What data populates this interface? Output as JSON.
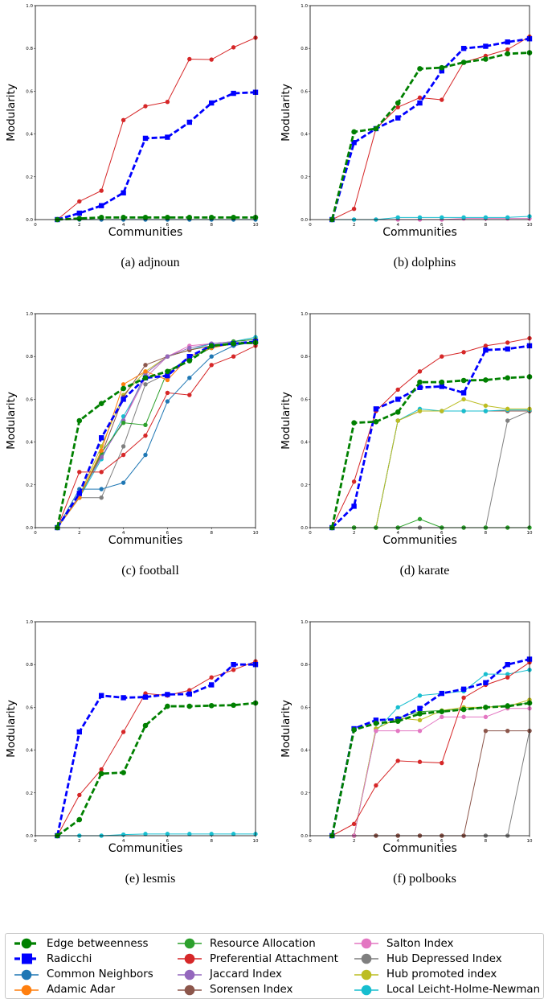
{
  "chart_data": [
    {
      "type": "line",
      "caption": "(a)  adjnoun",
      "xlabel": "Communities",
      "ylabel": "Modularity",
      "xlim": [
        0,
        10
      ],
      "ylim": [
        0,
        1.0
      ],
      "xticks": [
        "0",
        "2",
        "4",
        "6",
        "8",
        "10"
      ],
      "yticks": [
        "0.0",
        "0.2",
        "0.4",
        "0.6",
        "0.8",
        "1.0"
      ],
      "x": [
        1,
        2,
        3,
        4,
        5,
        6,
        7,
        8,
        9,
        10
      ],
      "series": [
        {
          "key": "edge",
          "values": [
            0,
            0.005,
            0.01,
            0.01,
            0.01,
            0.01,
            0.01,
            0.01,
            0.01,
            0.01
          ]
        },
        {
          "key": "radicchi",
          "values": [
            0,
            0.03,
            0.065,
            0.125,
            0.38,
            0.385,
            0.455,
            0.545,
            0.59,
            0.595
          ]
        },
        {
          "key": "pa",
          "values": [
            0,
            0.085,
            0.135,
            0.465,
            0.53,
            0.55,
            0.75,
            0.748,
            0.805,
            0.85
          ]
        },
        {
          "key": "cn",
          "values": [
            0,
            0,
            0,
            0,
            0,
            0,
            0,
            0,
            0,
            0
          ]
        }
      ]
    },
    {
      "type": "line",
      "caption": "(b)  dolphins",
      "xlabel": "Communities",
      "ylabel": "Modularity",
      "xlim": [
        0,
        10
      ],
      "ylim": [
        0,
        1.0
      ],
      "xticks": [
        "0",
        "2",
        "4",
        "6",
        "8",
        "10"
      ],
      "yticks": [
        "0.0",
        "0.2",
        "0.4",
        "0.6",
        "0.8",
        "1.0"
      ],
      "x": [
        1,
        2,
        3,
        4,
        5,
        6,
        7,
        8,
        9,
        10
      ],
      "series": [
        {
          "key": "edge",
          "values": [
            0,
            0.41,
            0.425,
            0.545,
            0.705,
            0.71,
            0.735,
            0.75,
            0.775,
            0.78
          ]
        },
        {
          "key": "radicchi",
          "values": [
            0,
            0.36,
            0.425,
            0.475,
            0.545,
            0.695,
            0.8,
            0.81,
            0.83,
            0.845
          ]
        },
        {
          "key": "pa",
          "values": [
            0,
            0.05,
            0.425,
            0.525,
            0.57,
            0.56,
            0.735,
            0.765,
            0.795,
            0.855
          ]
        },
        {
          "key": "lhn",
          "values": [
            0,
            0,
            0,
            0.01,
            0.01,
            0.01,
            0.01,
            0.01,
            0.01,
            0.015
          ]
        },
        {
          "key": "salton",
          "values": [
            0,
            0,
            0,
            0,
            0,
            0,
            0.005,
            0.005,
            0.005,
            0.005
          ]
        }
      ]
    },
    {
      "type": "line",
      "caption": "(c)  football",
      "xlabel": "Communities",
      "ylabel": "Modularity",
      "xlim": [
        0,
        10
      ],
      "ylim": [
        0,
        1.0
      ],
      "xticks": [
        "0",
        "2",
        "4",
        "6",
        "8",
        "10"
      ],
      "yticks": [
        "0.0",
        "0.2",
        "0.4",
        "0.6",
        "0.8",
        "1.0"
      ],
      "x": [
        1,
        2,
        3,
        4,
        5,
        6,
        7,
        8,
        9,
        10
      ],
      "series": [
        {
          "key": "edge",
          "values": [
            0,
            0.5,
            0.58,
            0.65,
            0.7,
            0.73,
            0.78,
            0.85,
            0.86,
            0.865
          ]
        },
        {
          "key": "radicchi",
          "values": [
            0,
            0.16,
            0.42,
            0.6,
            0.7,
            0.71,
            0.8,
            0.85,
            0.86,
            0.87
          ]
        },
        {
          "key": "cn",
          "values": [
            0,
            0.18,
            0.18,
            0.21,
            0.34,
            0.59,
            0.7,
            0.8,
            0.85,
            0.87
          ]
        },
        {
          "key": "aa",
          "values": [
            0,
            0.14,
            0.36,
            0.67,
            0.73,
            0.69,
            0.8,
            0.84,
            0.86,
            0.87
          ]
        },
        {
          "key": "ra",
          "values": [
            0,
            0.14,
            0.35,
            0.49,
            0.48,
            0.73,
            0.79,
            0.84,
            0.87,
            0.88
          ]
        },
        {
          "key": "pa",
          "values": [
            0,
            0.26,
            0.26,
            0.34,
            0.43,
            0.63,
            0.62,
            0.76,
            0.8,
            0.85
          ]
        },
        {
          "key": "jaccard",
          "values": [
            0,
            0.15,
            0.33,
            0.5,
            0.72,
            0.8,
            0.84,
            0.86,
            0.87,
            0.88
          ]
        },
        {
          "key": "sorensen",
          "values": [
            0,
            0.15,
            0.34,
            0.61,
            0.76,
            0.8,
            0.83,
            0.85,
            0.86,
            0.86
          ]
        },
        {
          "key": "salton",
          "values": [
            0,
            0.15,
            0.33,
            0.5,
            0.7,
            0.8,
            0.85,
            0.86,
            0.87,
            0.88
          ]
        },
        {
          "key": "hdi",
          "values": [
            0,
            0.14,
            0.14,
            0.38,
            0.67,
            0.72,
            0.8,
            0.84,
            0.86,
            0.86
          ]
        },
        {
          "key": "hpi",
          "values": [
            0,
            0.15,
            0.38,
            0.62,
            0.73,
            0.8,
            0.83,
            0.85,
            0.86,
            0.87
          ]
        },
        {
          "key": "lhn",
          "values": [
            0,
            0.14,
            0.32,
            0.52,
            0.7,
            0.8,
            0.83,
            0.86,
            0.87,
            0.89
          ]
        }
      ]
    },
    {
      "type": "line",
      "caption": "(d)  karate",
      "xlabel": "Communities",
      "ylabel": "Modularity",
      "xlim": [
        0,
        10
      ],
      "ylim": [
        0,
        1.0
      ],
      "xticks": [
        "0",
        "2",
        "4",
        "6",
        "8",
        "10"
      ],
      "yticks": [
        "0.0",
        "0.2",
        "0.4",
        "0.6",
        "0.8",
        "1.0"
      ],
      "x": [
        1,
        2,
        3,
        4,
        5,
        6,
        7,
        8,
        9,
        10
      ],
      "series": [
        {
          "key": "edge",
          "values": [
            0,
            0.49,
            0.495,
            0.54,
            0.68,
            0.68,
            0.688,
            0.69,
            0.7,
            0.705
          ]
        },
        {
          "key": "radicchi",
          "values": [
            0,
            0.1,
            0.555,
            0.6,
            0.655,
            0.66,
            0.63,
            0.83,
            0.835,
            0.85
          ]
        },
        {
          "key": "pa",
          "values": [
            0,
            0.215,
            0.545,
            0.645,
            0.73,
            0.8,
            0.82,
            0.85,
            0.865,
            0.885
          ]
        },
        {
          "key": "ra",
          "values": [
            0,
            0,
            0,
            0,
            0.04,
            0,
            0,
            0,
            0,
            0
          ]
        },
        {
          "key": "hpi",
          "values": [
            0,
            0,
            0,
            0.5,
            0.545,
            0.545,
            0.6,
            0.57,
            0.555,
            0.555
          ]
        },
        {
          "key": "lhn",
          "values": [
            0,
            0,
            0,
            0.5,
            0.555,
            0.545,
            0.545,
            0.545,
            0.55,
            0.55
          ]
        },
        {
          "key": "sorensen",
          "values": [
            0,
            0,
            0,
            0.5,
            0.545,
            0.545,
            0.545,
            0.545,
            0.545,
            0.545
          ]
        },
        {
          "key": "hdi",
          "values": [
            0,
            0,
            0,
            0,
            0,
            0,
            0,
            0,
            0.5,
            0.545
          ]
        }
      ]
    },
    {
      "type": "line",
      "caption": "(e)  lesmis",
      "xlabel": "Communities",
      "ylabel": "Modularity",
      "xlim": [
        0,
        10
      ],
      "ylim": [
        0,
        1.0
      ],
      "xticks": [
        "0",
        "2",
        "4",
        "6",
        "8",
        "10"
      ],
      "yticks": [
        "0.0",
        "0.2",
        "0.4",
        "0.6",
        "0.8",
        "1.0"
      ],
      "x": [
        1,
        2,
        3,
        4,
        5,
        6,
        7,
        8,
        9,
        10
      ],
      "series": [
        {
          "key": "edge",
          "values": [
            0,
            0.075,
            0.29,
            0.295,
            0.515,
            0.605,
            0.605,
            0.608,
            0.61,
            0.62
          ]
        },
        {
          "key": "radicchi",
          "values": [
            0,
            0.485,
            0.655,
            0.645,
            0.648,
            0.66,
            0.662,
            0.705,
            0.8,
            0.8
          ]
        },
        {
          "key": "pa",
          "values": [
            0,
            0.19,
            0.31,
            0.485,
            0.665,
            0.655,
            0.68,
            0.74,
            0.775,
            0.815
          ]
        },
        {
          "key": "lhn",
          "values": [
            0,
            0,
            0,
            0.005,
            0.008,
            0.008,
            0.008,
            0.008,
            0.008,
            0.008
          ]
        }
      ]
    },
    {
      "type": "line",
      "caption": "(f)  polbooks",
      "xlabel": "Communities",
      "ylabel": "Modularity",
      "xlim": [
        0,
        10
      ],
      "ylim": [
        0,
        1.0
      ],
      "xticks": [
        "0",
        "2",
        "4",
        "6",
        "8",
        "10"
      ],
      "yticks": [
        "0.0",
        "0.2",
        "0.4",
        "0.6",
        "0.8",
        "1.0"
      ],
      "x": [
        1,
        2,
        3,
        4,
        5,
        6,
        7,
        8,
        9,
        10
      ],
      "series": [
        {
          "key": "edge",
          "values": [
            0,
            0.495,
            0.525,
            0.535,
            0.57,
            0.58,
            0.59,
            0.6,
            0.605,
            0.62
          ]
        },
        {
          "key": "radicchi",
          "values": [
            0,
            0.5,
            0.54,
            0.545,
            0.595,
            0.665,
            0.685,
            0.715,
            0.8,
            0.825
          ]
        },
        {
          "key": "pa",
          "values": [
            0,
            0.055,
            0.235,
            0.35,
            0.345,
            0.34,
            0.645,
            0.705,
            0.74,
            0.81
          ]
        },
        {
          "key": "salton",
          "values": [
            0,
            0,
            0.49,
            0.49,
            0.49,
            0.555,
            0.555,
            0.555,
            0.595,
            0.595
          ]
        },
        {
          "key": "hpi",
          "values": [
            0,
            0,
            0.5,
            0.55,
            0.54,
            0.585,
            0.6,
            0.6,
            0.605,
            0.635
          ]
        },
        {
          "key": "ra",
          "values": [
            0,
            0,
            0.5,
            0.55,
            0.58,
            0.585,
            0.59,
            0.6,
            0.61,
            0.62
          ]
        },
        {
          "key": "lhn",
          "values": [
            0,
            0,
            0.49,
            0.6,
            0.655,
            0.665,
            0.675,
            0.755,
            0.755,
            0.775
          ]
        },
        {
          "key": "sorensen",
          "values": [
            0,
            0,
            0,
            0,
            0,
            0,
            0,
            0.49,
            0.49,
            0.49
          ]
        },
        {
          "key": "hdi",
          "values": [
            0,
            0,
            0,
            0,
            0,
            0,
            0,
            0,
            0,
            0.49
          ]
        }
      ]
    }
  ],
  "legend": [
    {
      "key": "edge",
      "label": "Edge betweenness",
      "color": "#008000",
      "marker": "circle",
      "dash": true
    },
    {
      "key": "radicchi",
      "label": "Radicchi",
      "color": "#0000ff",
      "marker": "square",
      "dash": true
    },
    {
      "key": "cn",
      "label": "Common Neighbors",
      "color": "#1f77b4",
      "marker": "circle",
      "dash": false
    },
    {
      "key": "aa",
      "label": "Adamic Adar",
      "color": "#ff7f0e",
      "marker": "circle",
      "dash": false
    },
    {
      "key": "ra",
      "label": "Resource Allocation",
      "color": "#2ca02c",
      "marker": "circle",
      "dash": false
    },
    {
      "key": "pa",
      "label": "Preferential Attachment",
      "color": "#d62728",
      "marker": "circle",
      "dash": false
    },
    {
      "key": "jaccard",
      "label": "Jaccard Index",
      "color": "#9467bd",
      "marker": "circle",
      "dash": false
    },
    {
      "key": "sorensen",
      "label": "Sorensen Index",
      "color": "#8c564b",
      "marker": "circle",
      "dash": false
    },
    {
      "key": "salton",
      "label": "Salton Index",
      "color": "#e377c2",
      "marker": "circle",
      "dash": false
    },
    {
      "key": "hdi",
      "label": "Hub Depressed Index",
      "color": "#7f7f7f",
      "marker": "circle",
      "dash": false
    },
    {
      "key": "hpi",
      "label": "Hub promoted index",
      "color": "#bcbd22",
      "marker": "circle",
      "dash": false
    },
    {
      "key": "lhn",
      "label": "Local Leicht-Holme-Newman",
      "color": "#17becf",
      "marker": "circle",
      "dash": false
    }
  ]
}
